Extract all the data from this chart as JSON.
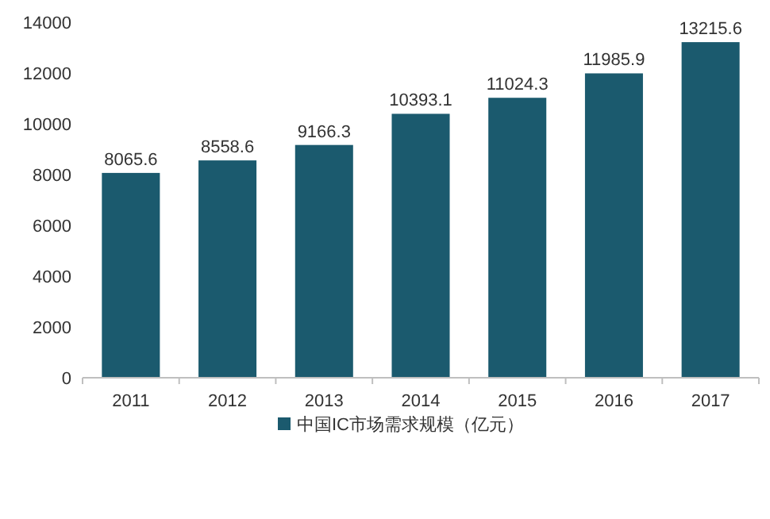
{
  "chart_data": {
    "type": "bar",
    "categories": [
      "2011",
      "2012",
      "2013",
      "2014",
      "2015",
      "2016",
      "2017"
    ],
    "series": [
      {
        "name": "中国IC市场需求规模（亿元）",
        "color": "#1b5a6e",
        "values": [
          8065.6,
          8558.6,
          9166.3,
          10393.1,
          11024.3,
          11985.9,
          13215.6
        ]
      }
    ],
    "ylim": [
      0,
      14000
    ],
    "yticks": [
      0,
      2000,
      4000,
      6000,
      8000,
      10000,
      12000,
      14000
    ],
    "data_labels": true,
    "legend": "bottom",
    "grid": false
  }
}
